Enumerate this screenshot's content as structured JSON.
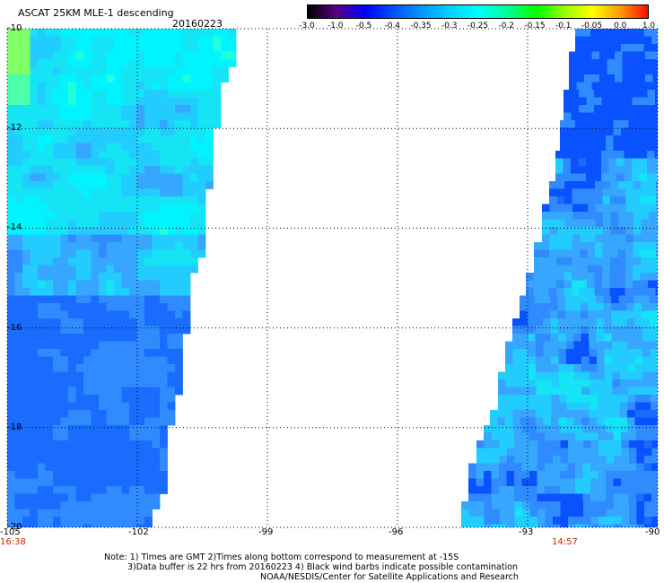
{
  "title": "ASCAT 25KM MLE-1 descending",
  "date": "20160223",
  "colorbar": {
    "labels": [
      "-3.0",
      "-1.0",
      "-0.5",
      "-0.4",
      "-0.35",
      "-0.3",
      "-0.25",
      "-0.2",
      "-0.15",
      "-0.1",
      "-0.05",
      "0.0",
      "1.0"
    ],
    "colors": [
      "#000000",
      "#5a0080",
      "#0000ff",
      "#0050ff",
      "#0096ff",
      "#00d2ff",
      "#00ffff",
      "#00ff96",
      "#00ff00",
      "#96ff00",
      "#ffff00",
      "#ff9600",
      "#ff0000"
    ]
  },
  "map": {
    "lon_range": [
      -105,
      -90
    ],
    "lat_range": [
      -10,
      -20
    ],
    "lon_ticks": [
      "-105",
      "-102",
      "-99",
      "-96",
      "-93",
      "-90"
    ],
    "lat_ticks": [
      "-10",
      "-12",
      "-14",
      "-16",
      "-18",
      "-20"
    ],
    "left_time": "16:38",
    "right_time": "14:57"
  },
  "notes": [
    "Note: 1) Times are GMT 2)Times along bottom correspond to measurement at -15S",
    "3)Data buffer is 22 hrs from 20160223 4) Black wind barbs indicate possible contamination",
    "NOAA/NESDIS/Center for Satellite Applications and Research"
  ]
}
